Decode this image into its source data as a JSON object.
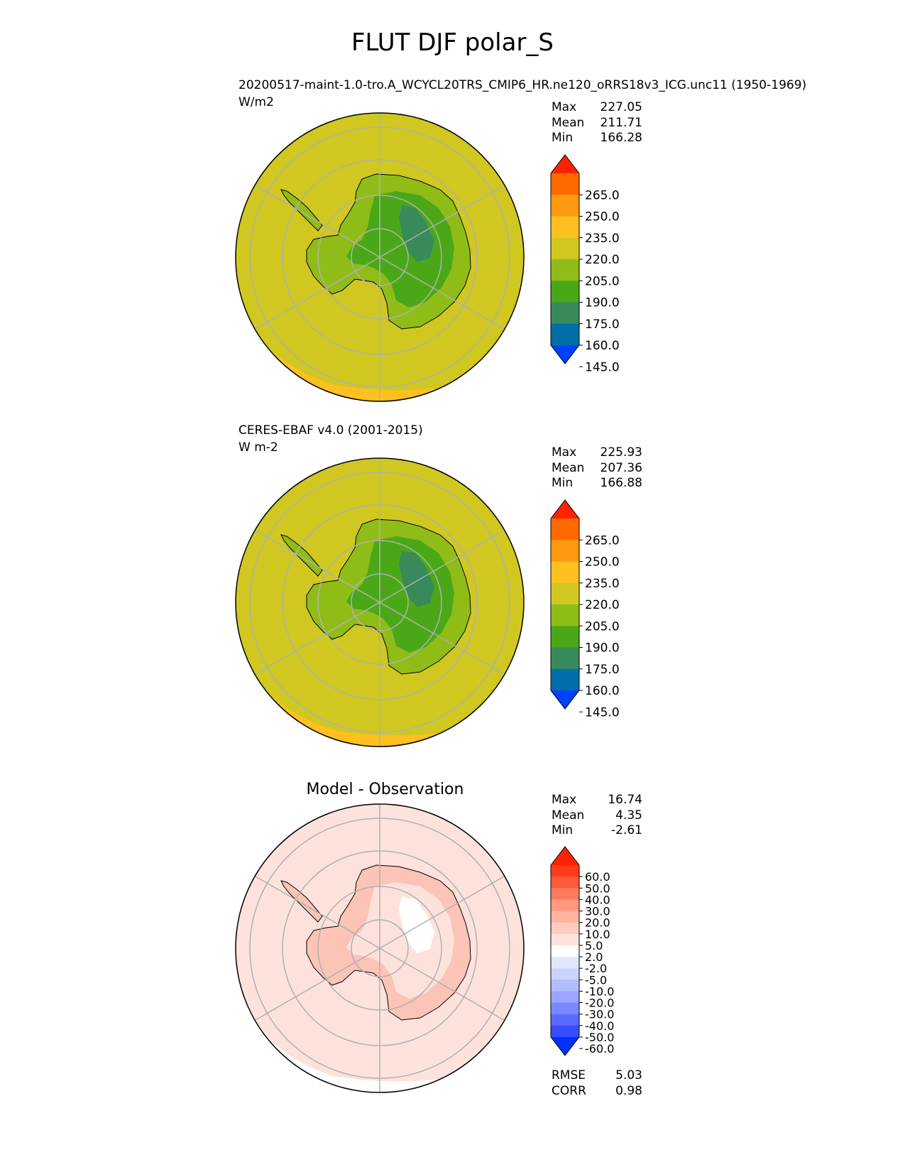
{
  "figure": {
    "title": "FLUT DJF polar_S"
  },
  "chart_data": [
    {
      "type": "heatmap",
      "projection": "south-polar-stereographic",
      "title": "20200517-maint-1.0-tro.A_WCYCL20TRS_CMIP6_HR.ne120_oRRS18v3_ICG.unc11 (1950-1969)",
      "units": "W/m2",
      "stats": [
        {
          "label": "Max",
          "value": "227.05"
        },
        {
          "label": "Mean",
          "value": "211.71"
        },
        {
          "label": "Min",
          "value": "166.28"
        }
      ],
      "colorbar": {
        "ticks": [
          "265.0",
          "250.0",
          "235.0",
          "220.0",
          "205.0",
          "190.0",
          "175.0",
          "160.0",
          "145.0"
        ],
        "colors": [
          "#ff2200",
          "#ff6a00",
          "#ff9910",
          "#ffc020",
          "#d0c820",
          "#90bc18",
          "#4aa818",
          "#388a5a",
          "#006ea8",
          "#0040ff"
        ],
        "extend": "both"
      },
      "fields": {
        "ocean": "#d0c820",
        "ring": "#ffc020",
        "interior": "#90bc18",
        "core": "#4aa818",
        "deep": "#388a5a"
      }
    },
    {
      "type": "heatmap",
      "projection": "south-polar-stereographic",
      "title": "CERES-EBAF v4.0 (2001-2015)",
      "units": "W m-2",
      "stats": [
        {
          "label": "Max",
          "value": "225.93"
        },
        {
          "label": "Mean",
          "value": "207.36"
        },
        {
          "label": "Min",
          "value": "166.88"
        }
      ],
      "colorbar": {
        "ticks": [
          "265.0",
          "250.0",
          "235.0",
          "220.0",
          "205.0",
          "190.0",
          "175.0",
          "160.0",
          "145.0"
        ],
        "colors": [
          "#ff2200",
          "#ff6a00",
          "#ff9910",
          "#ffc020",
          "#d0c820",
          "#90bc18",
          "#4aa818",
          "#388a5a",
          "#006ea8",
          "#0040ff"
        ],
        "extend": "both"
      },
      "fields": {
        "ocean": "#d0c820",
        "ring": "#ffc020",
        "interior": "#90bc18",
        "core": "#4aa818",
        "deep": "#388a5a"
      }
    },
    {
      "type": "heatmap",
      "projection": "south-polar-stereographic",
      "title": "Model - Observation",
      "stats": [
        {
          "label": "Max",
          "value": "16.74"
        },
        {
          "label": "Mean",
          "value": "4.35"
        },
        {
          "label": "Min",
          "value": "-2.61"
        }
      ],
      "metrics": [
        {
          "label": "RMSE",
          "value": "5.03"
        },
        {
          "label": "CORR",
          "value": "0.98"
        }
      ],
      "colorbar": {
        "ticks": [
          "60.0",
          "50.0",
          "40.0",
          "30.0",
          "20.0",
          "10.0",
          "5.0",
          "2.0",
          "-2.0",
          "-5.0",
          "-10.0",
          "-20.0",
          "-30.0",
          "-40.0",
          "-50.0",
          "-60.0"
        ],
        "colors": [
          "#ff2200",
          "#ff3a1a",
          "#ff5a3a",
          "#ff7a5c",
          "#ff9a80",
          "#ffb3a0",
          "#ffcbbd",
          "#ffe2da",
          "#ffffff",
          "#e2e6ff",
          "#cbd2ff",
          "#b3bcff",
          "#9aa6ff",
          "#7a88ff",
          "#5a6aff",
          "#3a4cff",
          "#0030ff"
        ],
        "extend": "both"
      },
      "fields": {
        "ocean": "#fde2dc",
        "ring": "#ffffff",
        "interior": "#fbc4b6",
        "core": "#fde2dc",
        "deep": "#ffffff"
      }
    }
  ]
}
